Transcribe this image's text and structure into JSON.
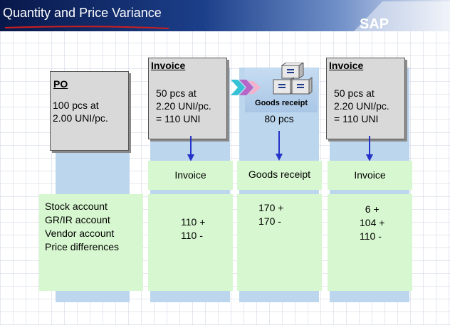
{
  "header": {
    "title": "Quantity and Price Variance",
    "logo": "SAP",
    "colors": {
      "bar_dark": "#08184a",
      "bar_light": "#e4e9f4",
      "underline": "#cc1f1f"
    }
  },
  "documents": {
    "po": {
      "heading": "PO",
      "lines": "100 pcs at\n2.00 UNI/pc."
    },
    "invoice1": {
      "heading": "Invoice",
      "lines": "50 pcs at\n2.20 UNI/pc.\n= 110 UNI"
    },
    "goods_receipt": {
      "label": "Goods receipt",
      "quantity": "80 pcs"
    },
    "invoice2": {
      "heading": "Invoice",
      "lines": "50 pcs at\n2.20 UNI/pc.\n= 110 UNI"
    }
  },
  "postings": {
    "col1_label": "Invoice",
    "col2_label": "Goods receipt",
    "col3_label": "Invoice",
    "accounts": "Stock account\nGR/IR account\nVendor account\nPrice differences",
    "col1_values": "110 +\n110 -",
    "col2_values": "170 +\n170 -",
    "col3_values": "  6 +\n104 +\n110 -"
  },
  "colors": {
    "column_blue": "#bcd6ee",
    "doc_gray": "#d9d9d9",
    "posting_green": "#d7f7d0",
    "arrow_blue": "#2633c9"
  },
  "icons": [
    "goods-receipt-boxes-icon",
    "chevron-arrow-icon",
    "down-arrow-icon"
  ]
}
